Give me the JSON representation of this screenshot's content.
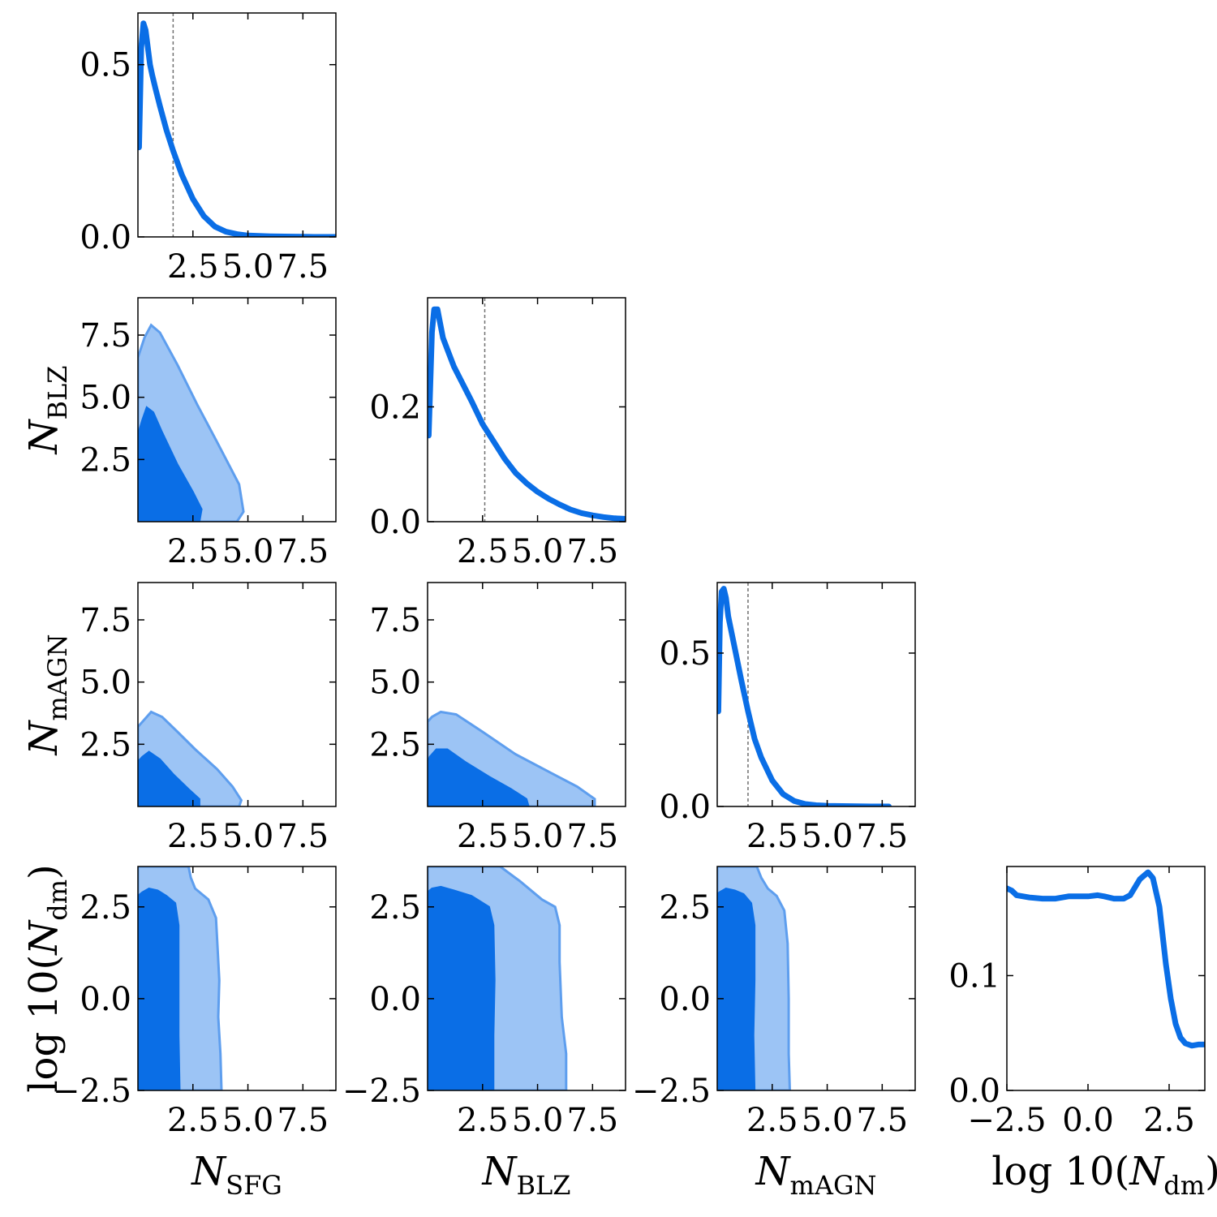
{
  "chart_data": {
    "type": "corner",
    "colors": {
      "line": "#0a6ee6",
      "fill_inner": "#0a6ee6",
      "fill_outer": "#9cc4f5",
      "outer_edge": "#5e9eee",
      "median": "#707070"
    },
    "parameters": [
      {
        "key": "sfg",
        "label_main": "N",
        "label_sub": "SFG",
        "range": [
          0,
          9
        ]
      },
      {
        "key": "blz",
        "label_main": "N",
        "label_sub": "BLZ",
        "range": [
          0,
          9
        ]
      },
      {
        "key": "magn",
        "label_main": "N",
        "label_sub": "mAGN",
        "range": [
          0,
          9
        ]
      },
      {
        "key": "dm",
        "label_pre": "log 10(",
        "label_main": "N",
        "label_sub": "dm",
        "label_post": ")",
        "range": [
          -2.5,
          3.6
        ]
      }
    ],
    "ticks": {
      "sfg": [
        "2.5",
        "5.0",
        "7.5"
      ],
      "blz": [
        "2.5",
        "5.0",
        "7.5"
      ],
      "magn": [
        "2.5",
        "5.0",
        "7.5"
      ],
      "dm": [
        "−2.5",
        "0.0",
        "2.5"
      ]
    },
    "marginals": [
      {
        "param": "sfg",
        "ylim": [
          0,
          0.65
        ],
        "yticks": [
          "0.0",
          "0.5"
        ],
        "median": 1.6,
        "x": [
          0.05,
          0.15,
          0.25,
          0.35,
          0.45,
          0.55,
          0.65,
          0.8,
          1.0,
          1.3,
          1.6,
          2.0,
          2.5,
          3.0,
          3.5,
          4.0,
          4.5,
          5.0,
          6.0,
          7.0,
          8.0,
          9.0
        ],
        "y": [
          0.26,
          0.55,
          0.62,
          0.6,
          0.55,
          0.5,
          0.47,
          0.43,
          0.38,
          0.31,
          0.25,
          0.18,
          0.11,
          0.06,
          0.03,
          0.015,
          0.008,
          0.004,
          0.002,
          0.001,
          0.0,
          0.0
        ]
      },
      {
        "param": "blz",
        "ylim": [
          0,
          0.39
        ],
        "yticks": [
          "0.0",
          "0.2"
        ],
        "median": 2.6,
        "x": [
          0.05,
          0.2,
          0.3,
          0.45,
          0.55,
          0.7,
          0.9,
          1.2,
          1.6,
          2.0,
          2.5,
          3.0,
          3.5,
          4.0,
          4.5,
          5.0,
          5.5,
          6.0,
          6.5,
          7.0,
          7.5,
          8.0,
          8.5,
          9.0
        ],
        "y": [
          0.15,
          0.33,
          0.37,
          0.37,
          0.35,
          0.32,
          0.3,
          0.27,
          0.24,
          0.21,
          0.17,
          0.14,
          0.11,
          0.085,
          0.067,
          0.052,
          0.04,
          0.03,
          0.021,
          0.015,
          0.011,
          0.008,
          0.006,
          0.005
        ]
      },
      {
        "param": "magn",
        "ylim": [
          0,
          0.73
        ],
        "yticks": [
          "0.0",
          "0.5"
        ],
        "median": 1.4,
        "x": [
          0.05,
          0.12,
          0.2,
          0.3,
          0.4,
          0.5,
          0.7,
          0.9,
          1.1,
          1.4,
          1.7,
          2.0,
          2.5,
          3.0,
          3.5,
          4.0,
          4.5,
          5.0,
          6.0,
          7.0,
          7.8
        ],
        "y": [
          0.31,
          0.6,
          0.7,
          0.71,
          0.68,
          0.62,
          0.55,
          0.48,
          0.41,
          0.31,
          0.22,
          0.16,
          0.085,
          0.04,
          0.018,
          0.008,
          0.004,
          0.002,
          0.001,
          0.0,
          0.0
        ]
      },
      {
        "param": "dm",
        "ylim": [
          0,
          0.195
        ],
        "yticks": [
          "0.0",
          "0.1"
        ],
        "median": null,
        "x": [
          -2.5,
          -2.35,
          -2.2,
          -1.8,
          -1.4,
          -1.0,
          -0.6,
          -0.3,
          0.0,
          0.3,
          0.5,
          0.8,
          1.1,
          1.3,
          1.6,
          1.85,
          2.0,
          2.2,
          2.4,
          2.55,
          2.7,
          2.85,
          3.0,
          3.2,
          3.4,
          3.6
        ],
        "y": [
          0.176,
          0.174,
          0.17,
          0.168,
          0.167,
          0.167,
          0.169,
          0.169,
          0.169,
          0.17,
          0.169,
          0.167,
          0.167,
          0.17,
          0.184,
          0.19,
          0.185,
          0.16,
          0.11,
          0.08,
          0.058,
          0.046,
          0.041,
          0.039,
          0.04,
          0.04
        ]
      }
    ],
    "joint": [
      {
        "xparam": "sfg",
        "yparam": "blz",
        "outer": [
          [
            0,
            0
          ],
          [
            4.5,
            0
          ],
          [
            4.8,
            0.4
          ],
          [
            4.6,
            1.5
          ],
          [
            3.6,
            3.2
          ],
          [
            2.7,
            4.7
          ],
          [
            1.8,
            6.3
          ],
          [
            1.0,
            7.6
          ],
          [
            0.6,
            7.9
          ],
          [
            0.3,
            7.4
          ],
          [
            0,
            6.6
          ]
        ],
        "inner": [
          [
            0,
            0
          ],
          [
            2.8,
            0
          ],
          [
            2.9,
            0.5
          ],
          [
            2.5,
            1.2
          ],
          [
            1.8,
            2.3
          ],
          [
            1.1,
            3.6
          ],
          [
            0.7,
            4.4
          ],
          [
            0.4,
            4.6
          ],
          [
            0.2,
            4.1
          ],
          [
            0,
            3.5
          ]
        ]
      },
      {
        "xparam": "sfg",
        "yparam": "magn",
        "outer": [
          [
            0,
            0
          ],
          [
            4.6,
            0
          ],
          [
            4.7,
            0.25
          ],
          [
            4.3,
            0.8
          ],
          [
            3.6,
            1.5
          ],
          [
            2.6,
            2.3
          ],
          [
            1.8,
            3.0
          ],
          [
            1.1,
            3.6
          ],
          [
            0.6,
            3.8
          ],
          [
            0.3,
            3.5
          ],
          [
            0,
            3.2
          ]
        ],
        "inner": [
          [
            0,
            0
          ],
          [
            2.8,
            0
          ],
          [
            2.8,
            0.3
          ],
          [
            2.3,
            0.7
          ],
          [
            1.6,
            1.3
          ],
          [
            1.0,
            1.9
          ],
          [
            0.5,
            2.2
          ],
          [
            0.2,
            2.0
          ],
          [
            0,
            1.8
          ]
        ]
      },
      {
        "xparam": "blz",
        "yparam": "magn",
        "outer": [
          [
            0,
            0
          ],
          [
            7.6,
            0
          ],
          [
            7.6,
            0.3
          ],
          [
            6.8,
            0.8
          ],
          [
            5.5,
            1.4
          ],
          [
            4.0,
            2.1
          ],
          [
            2.5,
            3.0
          ],
          [
            1.3,
            3.7
          ],
          [
            0.6,
            3.8
          ],
          [
            0.2,
            3.6
          ],
          [
            0,
            3.4
          ]
        ],
        "inner": [
          [
            0,
            0
          ],
          [
            4.6,
            0
          ],
          [
            4.5,
            0.3
          ],
          [
            3.8,
            0.7
          ],
          [
            2.8,
            1.2
          ],
          [
            1.7,
            1.8
          ],
          [
            0.9,
            2.3
          ],
          [
            0.4,
            2.3
          ],
          [
            0.1,
            2.0
          ],
          [
            0,
            1.8
          ]
        ]
      },
      {
        "xparam": "sfg",
        "yparam": "dm",
        "outer": [
          [
            0,
            -2.5
          ],
          [
            3.8,
            -2.5
          ],
          [
            3.75,
            -1.5
          ],
          [
            3.65,
            -0.5
          ],
          [
            3.7,
            0.5
          ],
          [
            3.55,
            2.2
          ],
          [
            3.2,
            2.7
          ],
          [
            2.6,
            3.0
          ],
          [
            2.4,
            3.3
          ],
          [
            2.3,
            3.6
          ],
          [
            0,
            3.6
          ]
        ],
        "inner": [
          [
            0,
            -2.5
          ],
          [
            1.9,
            -2.5
          ],
          [
            1.85,
            -1.0
          ],
          [
            1.85,
            0.5
          ],
          [
            1.85,
            2.0
          ],
          [
            1.7,
            2.6
          ],
          [
            1.3,
            2.8
          ],
          [
            0.9,
            2.95
          ],
          [
            0.5,
            3.0
          ],
          [
            0.2,
            2.9
          ],
          [
            0,
            2.8
          ]
        ]
      },
      {
        "xparam": "blz",
        "yparam": "dm",
        "outer": [
          [
            0,
            -2.5
          ],
          [
            6.3,
            -2.5
          ],
          [
            6.3,
            -1.5
          ],
          [
            6.1,
            -0.5
          ],
          [
            6.0,
            1.0
          ],
          [
            6.0,
            2.0
          ],
          [
            5.8,
            2.5
          ],
          [
            5.2,
            2.7
          ],
          [
            4.2,
            3.2
          ],
          [
            3.3,
            3.6
          ],
          [
            0,
            3.6
          ]
        ],
        "inner": [
          [
            0,
            -2.5
          ],
          [
            3.0,
            -2.5
          ],
          [
            3.0,
            -1.0
          ],
          [
            3.05,
            0.5
          ],
          [
            3.0,
            2.0
          ],
          [
            2.8,
            2.5
          ],
          [
            2.0,
            2.8
          ],
          [
            1.2,
            2.95
          ],
          [
            0.6,
            3.05
          ],
          [
            0.2,
            3.0
          ],
          [
            0,
            2.9
          ]
        ]
      },
      {
        "xparam": "magn",
        "yparam": "dm",
        "outer": [
          [
            0,
            -2.5
          ],
          [
            3.3,
            -2.5
          ],
          [
            3.25,
            -1.5
          ],
          [
            3.25,
            0.0
          ],
          [
            3.2,
            1.5
          ],
          [
            3.05,
            2.4
          ],
          [
            2.7,
            2.8
          ],
          [
            2.3,
            3.0
          ],
          [
            2.0,
            3.3
          ],
          [
            1.8,
            3.6
          ],
          [
            0,
            3.6
          ]
        ],
        "inner": [
          [
            0,
            -2.5
          ],
          [
            1.7,
            -2.5
          ],
          [
            1.65,
            -1.0
          ],
          [
            1.7,
            0.5
          ],
          [
            1.7,
            2.0
          ],
          [
            1.55,
            2.6
          ],
          [
            1.2,
            2.85
          ],
          [
            0.8,
            2.95
          ],
          [
            0.4,
            3.0
          ],
          [
            0.1,
            2.9
          ],
          [
            0,
            2.85
          ]
        ]
      }
    ]
  }
}
